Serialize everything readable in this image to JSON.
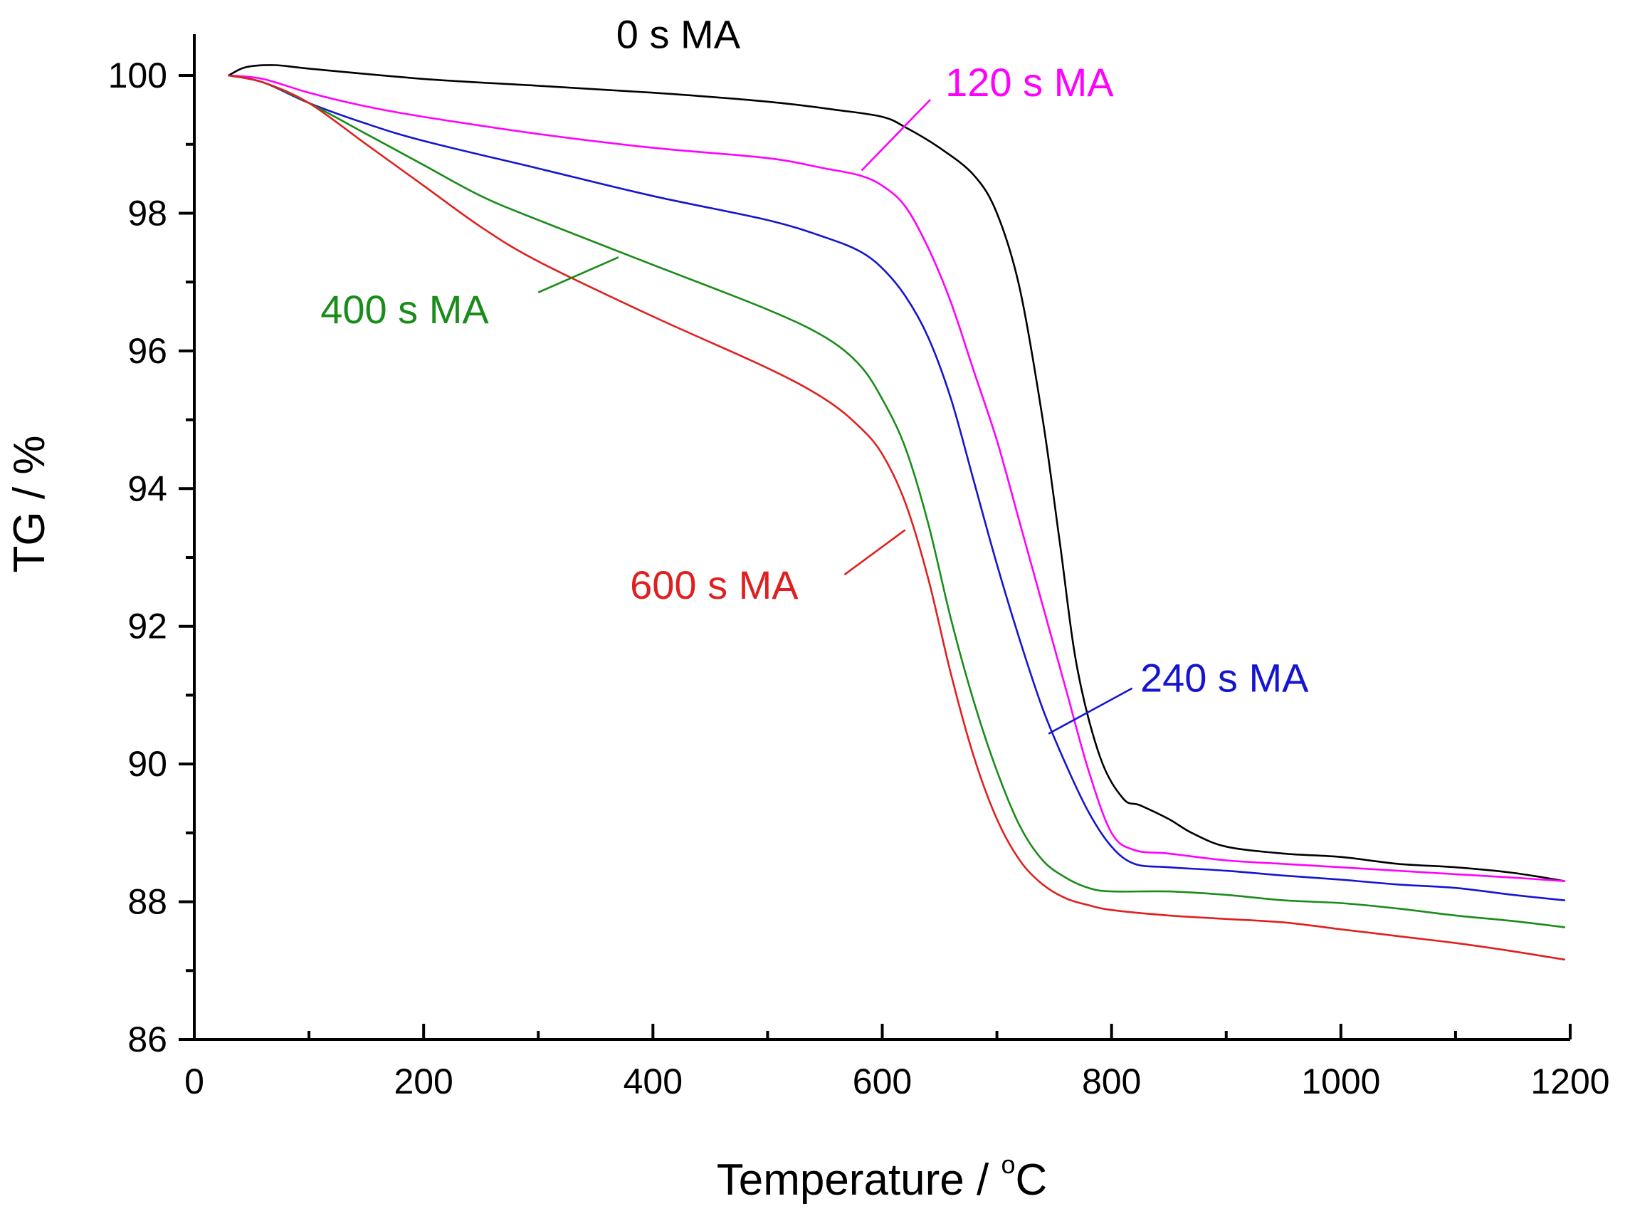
{
  "chart_data": {
    "type": "line",
    "title": "",
    "xlabel": "Temperature / ",
    "xlabel_degree": "o",
    "xlabel_unit": "C",
    "ylabel": "TG / %",
    "xlim": [
      0,
      1200
    ],
    "ylim": [
      86,
      100.6
    ],
    "x_ticks": [
      0,
      200,
      400,
      600,
      800,
      1000,
      1200
    ],
    "x_tick_labels": [
      "0",
      "200",
      "400",
      "600",
      "800",
      "1000",
      "1200"
    ],
    "x_minor_step": 100,
    "y_ticks": [
      86,
      88,
      90,
      92,
      94,
      96,
      98,
      100
    ],
    "y_tick_labels": [
      "86",
      "88",
      "90",
      "92",
      "94",
      "96",
      "98",
      "100"
    ],
    "y_minor_step": 1,
    "grid": false,
    "series": [
      {
        "name": "0 s MA",
        "color": "#000000",
        "x": [
          30,
          45,
          70,
          100,
          200,
          300,
          400,
          500,
          560,
          600,
          620,
          650,
          680,
          700,
          720,
          740,
          755,
          770,
          790,
          810,
          825,
          850,
          870,
          900,
          950,
          1000,
          1050,
          1100,
          1150,
          1195
        ],
        "y": [
          100.0,
          100.12,
          100.15,
          100.1,
          99.95,
          99.85,
          99.75,
          99.62,
          99.5,
          99.4,
          99.25,
          98.95,
          98.55,
          98.0,
          96.9,
          95.0,
          93.2,
          91.4,
          90.1,
          89.5,
          89.4,
          89.2,
          89.0,
          88.8,
          88.7,
          88.65,
          88.55,
          88.5,
          88.42,
          88.3
        ]
      },
      {
        "name": "120 s MA",
        "color": "#ff00ff",
        "x": [
          30,
          60,
          100,
          150,
          200,
          300,
          400,
          500,
          550,
          580,
          600,
          620,
          640,
          660,
          680,
          700,
          720,
          740,
          760,
          780,
          800,
          820,
          850,
          900,
          950,
          1000,
          1050,
          1100,
          1150,
          1195
        ],
        "y": [
          100.0,
          99.95,
          99.75,
          99.55,
          99.4,
          99.15,
          98.95,
          98.8,
          98.65,
          98.55,
          98.4,
          98.1,
          97.5,
          96.7,
          95.7,
          94.7,
          93.5,
          92.3,
          91.1,
          89.9,
          89.0,
          88.75,
          88.7,
          88.6,
          88.55,
          88.5,
          88.45,
          88.4,
          88.35,
          88.3
        ]
      },
      {
        "name": "240 s MA",
        "color": "#1515d0",
        "x": [
          30,
          60,
          100,
          150,
          200,
          300,
          400,
          500,
          550,
          580,
          600,
          620,
          640,
          660,
          680,
          700,
          720,
          740,
          760,
          780,
          800,
          820,
          850,
          900,
          950,
          1000,
          1050,
          1100,
          1150,
          1195
        ],
        "y": [
          100.0,
          99.9,
          99.6,
          99.3,
          99.05,
          98.65,
          98.25,
          97.9,
          97.65,
          97.45,
          97.2,
          96.8,
          96.2,
          95.3,
          94.1,
          92.9,
          91.8,
          90.8,
          90.0,
          89.3,
          88.8,
          88.55,
          88.5,
          88.45,
          88.38,
          88.32,
          88.25,
          88.2,
          88.1,
          88.02
        ]
      },
      {
        "name": "400 s MA",
        "color": "#1a8c1a",
        "x": [
          30,
          60,
          100,
          150,
          200,
          250,
          300,
          400,
          500,
          550,
          580,
          600,
          620,
          640,
          660,
          680,
          700,
          720,
          740,
          760,
          780,
          800,
          850,
          900,
          950,
          1000,
          1050,
          1100,
          1150,
          1195
        ],
        "y": [
          100.0,
          99.9,
          99.6,
          99.15,
          98.7,
          98.25,
          97.9,
          97.25,
          96.6,
          96.2,
          95.8,
          95.3,
          94.6,
          93.5,
          92.1,
          90.9,
          89.9,
          89.1,
          88.6,
          88.35,
          88.2,
          88.15,
          88.15,
          88.1,
          88.02,
          87.98,
          87.9,
          87.8,
          87.72,
          87.63
        ]
      },
      {
        "name": "600 s MA",
        "color": "#e02020",
        "x": [
          30,
          60,
          100,
          150,
          200,
          250,
          300,
          400,
          500,
          550,
          580,
          600,
          620,
          640,
          660,
          680,
          700,
          720,
          740,
          760,
          780,
          800,
          850,
          900,
          950,
          1000,
          1050,
          1100,
          1150,
          1195
        ],
        "y": [
          100.0,
          99.9,
          99.6,
          99.0,
          98.4,
          97.8,
          97.3,
          96.5,
          95.75,
          95.3,
          94.9,
          94.5,
          93.8,
          92.7,
          91.3,
          90.1,
          89.2,
          88.6,
          88.25,
          88.05,
          87.95,
          87.88,
          87.8,
          87.75,
          87.7,
          87.6,
          87.5,
          87.4,
          87.28,
          87.16
        ]
      }
    ],
    "annotations": [
      {
        "text": "0 s MA",
        "color": "#000000",
        "label_at": [
          368,
          100.4
        ],
        "leader": null
      },
      {
        "text": "120 s MA",
        "color": "#ff00ff",
        "label_at": [
          655,
          99.7
        ],
        "leader": [
          [
            582,
            98.62
          ],
          [
            642,
            99.65
          ]
        ]
      },
      {
        "text": "240 s MA",
        "color": "#1515d0",
        "label_at": [
          825,
          91.05
        ],
        "leader": [
          [
            745,
            90.44
          ],
          [
            818,
            91.1
          ]
        ]
      },
      {
        "text": "400 s MA",
        "color": "#1a8c1a",
        "label_at": [
          110,
          96.4
        ],
        "leader": [
          [
            300,
            96.85
          ],
          [
            370,
            97.36
          ]
        ]
      },
      {
        "text": "600 s MA",
        "color": "#e02020",
        "label_at": [
          380,
          92.4
        ],
        "leader": [
          [
            567,
            92.75
          ],
          [
            620,
            93.4
          ]
        ]
      }
    ]
  }
}
